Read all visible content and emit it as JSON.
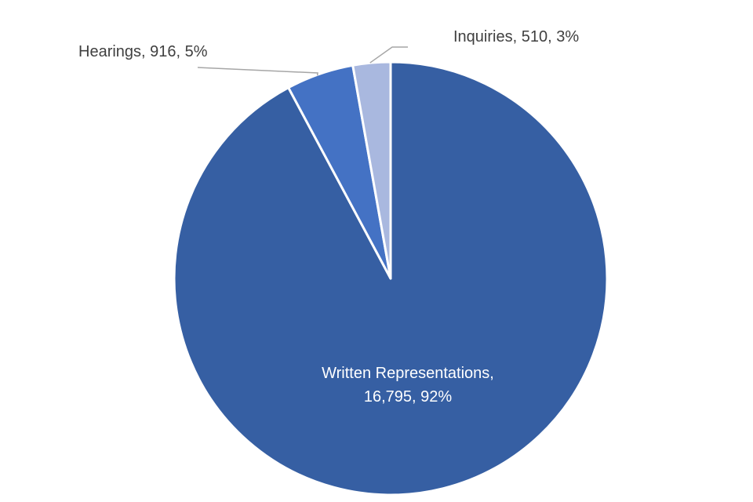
{
  "chart_data": {
    "type": "pie",
    "title": "",
    "legend": "none",
    "slices": [
      {
        "name": "Written Representations",
        "value": 16795,
        "percent": "92%",
        "color": "#365fa3",
        "label_lines": [
          "Written Representations,",
          "16,795, 92%"
        ]
      },
      {
        "name": "Hearings",
        "value": 916,
        "percent": "5%",
        "color": "#4472c4",
        "label_lines": [
          "Hearings, 916, 5%"
        ]
      },
      {
        "name": "Inquiries",
        "value": 510,
        "percent": "3%",
        "color": "#a9b8df",
        "label_lines": [
          "Inquiries, 510, 3%"
        ]
      }
    ],
    "start_angle": "12 o'clock",
    "direction": "clockwise"
  }
}
